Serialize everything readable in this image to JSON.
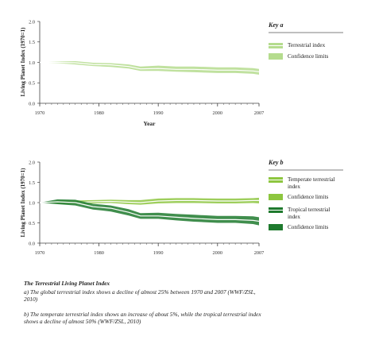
{
  "chart_data": [
    {
      "type": "area",
      "ylabel": "Living Planet Index (1970=1)",
      "xlabel": "Year",
      "xlim": [
        1970,
        2007
      ],
      "ylim": [
        0,
        2
      ],
      "y_ticks": [
        "0.0",
        "0.5",
        "1.0",
        "1.5",
        "2.0"
      ],
      "x_ticks": [
        "1970",
        "1980",
        "1990",
        "2000",
        "2007"
      ],
      "legend_placement": "right",
      "legend_title": "Key a",
      "legend": [
        "Terrestrial index",
        "Confidence limits"
      ],
      "series": [
        {
          "name": "Terrestrial index",
          "color": "#b5dc8e",
          "x": [
            1970,
            1973,
            1976,
            1979,
            1982,
            1985,
            1987,
            1990,
            1993,
            1996,
            2000,
            2003,
            2006,
            2007
          ],
          "values": [
            1.0,
            1.0,
            0.99,
            0.95,
            0.94,
            0.9,
            0.84,
            0.85,
            0.83,
            0.83,
            0.81,
            0.81,
            0.79,
            0.77
          ],
          "upper": [
            1.0,
            1.02,
            1.03,
            0.99,
            0.98,
            0.95,
            0.9,
            0.92,
            0.9,
            0.9,
            0.88,
            0.88,
            0.86,
            0.84
          ],
          "lower": [
            1.0,
            0.98,
            0.95,
            0.91,
            0.89,
            0.85,
            0.79,
            0.79,
            0.77,
            0.76,
            0.74,
            0.74,
            0.72,
            0.7
          ]
        }
      ]
    },
    {
      "type": "area",
      "ylabel": "Living Planet Index (1970=1)",
      "xlabel": "",
      "xlim": [
        1970,
        2007
      ],
      "ylim": [
        0,
        2
      ],
      "y_ticks": [
        "0.0",
        "0.5",
        "1.0",
        "1.5",
        "2.0"
      ],
      "x_ticks": [
        "1970",
        "1980",
        "1990",
        "2000",
        "2007"
      ],
      "legend_placement": "right",
      "legend_title": "Key b",
      "legend": [
        "Temperate terrestrial index",
        "Confidence limits",
        "Tropical terrestrial index",
        "Confidence limits"
      ],
      "series": [
        {
          "name": "Temperate terrestrial index",
          "color": "#8dc63f",
          "x": [
            1970,
            1973,
            1976,
            1979,
            1982,
            1985,
            1987,
            1990,
            1993,
            1996,
            2000,
            2003,
            2006,
            2007
          ],
          "values": [
            1.0,
            1.01,
            1.0,
            1.02,
            1.03,
            1.01,
            1.0,
            1.04,
            1.05,
            1.05,
            1.04,
            1.04,
            1.05,
            1.05
          ],
          "upper": [
            1.0,
            1.05,
            1.05,
            1.06,
            1.07,
            1.06,
            1.06,
            1.1,
            1.11,
            1.11,
            1.1,
            1.1,
            1.11,
            1.12
          ],
          "lower": [
            1.0,
            0.97,
            0.96,
            0.98,
            0.99,
            0.96,
            0.95,
            0.98,
            0.99,
            0.99,
            0.98,
            0.98,
            0.99,
            0.98
          ]
        },
        {
          "name": "Tropical terrestrial index",
          "color": "#1f7a2e",
          "x": [
            1970,
            1973,
            1976,
            1979,
            1982,
            1985,
            1987,
            1990,
            1993,
            1996,
            2000,
            2003,
            2006,
            2007
          ],
          "values": [
            1.0,
            1.02,
            1.0,
            0.9,
            0.86,
            0.76,
            0.67,
            0.67,
            0.64,
            0.61,
            0.58,
            0.58,
            0.56,
            0.54
          ],
          "upper": [
            1.0,
            1.08,
            1.07,
            0.97,
            0.93,
            0.84,
            0.74,
            0.75,
            0.72,
            0.7,
            0.67,
            0.67,
            0.66,
            0.64
          ],
          "lower": [
            1.0,
            0.96,
            0.93,
            0.83,
            0.78,
            0.68,
            0.6,
            0.6,
            0.56,
            0.53,
            0.5,
            0.5,
            0.47,
            0.44
          ]
        }
      ]
    }
  ],
  "caption": {
    "title": "The Terrestrial Living Planet Index",
    "para_a": "a) The global terrestrial index shows a decline of almost 25% between 1970 and 2007 (WWF/ZSL, 2010)",
    "para_b": "b) The temperate terrestrial index shows an increase of about 5%, while the tropical terrestrial index shows a decline of almost 50% (WWF/ZSL, 2010)"
  }
}
